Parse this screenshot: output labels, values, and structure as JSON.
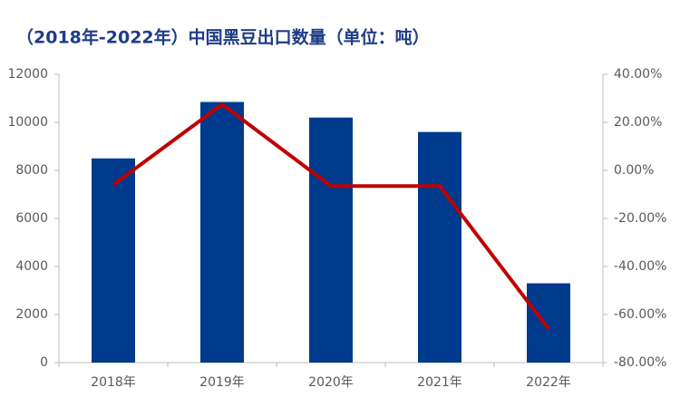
{
  "chart_data": {
    "type": "bar",
    "title": "（2018年-2022年）中国黑豆出口数量（单位：吨）",
    "categories": [
      "2018年",
      "2019年",
      "2020年",
      "2021年",
      "2022年"
    ],
    "series": [
      {
        "type": "bar",
        "color": "#003a8c",
        "values": [
          8500,
          10850,
          10200,
          9600,
          3300
        ]
      },
      {
        "type": "line",
        "axis": "y2",
        "color": "#c00000",
        "values": [
          -6,
          27.5,
          -6.5,
          -6.5,
          -66
        ]
      }
    ],
    "ylim": [
      0,
      12000
    ],
    "yticks": [
      0,
      2000,
      4000,
      6000,
      8000,
      10000,
      12000
    ],
    "y2lim": [
      -80,
      40
    ],
    "y2ticks": [
      {
        "value": -80,
        "label": "-80.00%"
      },
      {
        "value": -60,
        "label": "-60.00%"
      },
      {
        "value": -40,
        "label": "-40.00%"
      },
      {
        "value": -20,
        "label": "-20.00%"
      },
      {
        "value": 0,
        "label": "0.00%"
      },
      {
        "value": 20,
        "label": "20.00%"
      },
      {
        "value": 40,
        "label": "40.00%"
      }
    ],
    "grid": false
  }
}
